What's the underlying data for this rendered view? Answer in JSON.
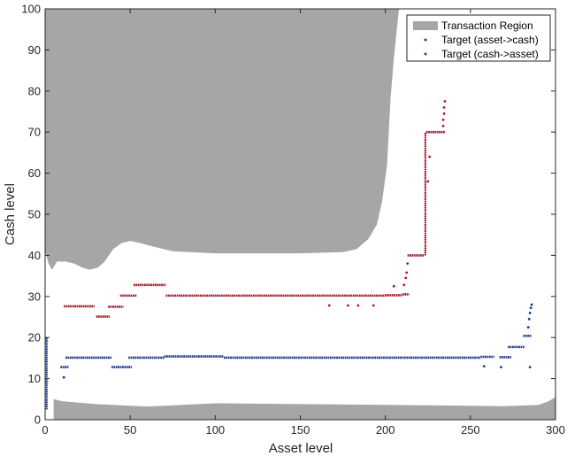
{
  "chart_data": {
    "type": "scatter",
    "title": "",
    "xlabel": "Asset level",
    "ylabel": "Cash level",
    "xlim": [
      0,
      300
    ],
    "ylim": [
      0,
      100
    ],
    "xticks": [
      0,
      50,
      100,
      150,
      200,
      250,
      300
    ],
    "yticks": [
      0,
      10,
      20,
      30,
      40,
      50,
      60,
      70,
      80,
      90,
      100
    ],
    "grid": false,
    "legend_position": "top-right",
    "colors": {
      "region": "#a6a6a6",
      "asset_to_cash": "#1f3b8f",
      "cash_to_asset": "#a31a2e"
    },
    "region": {
      "name": "Transaction Region",
      "upper_boundary": [
        [
          0,
          41
        ],
        [
          2,
          38
        ],
        [
          4,
          36.5
        ],
        [
          7,
          38.5
        ],
        [
          12,
          38.5
        ],
        [
          17,
          38
        ],
        [
          22,
          37
        ],
        [
          26,
          36.5
        ],
        [
          31,
          37
        ],
        [
          35,
          38.5
        ],
        [
          40,
          41.5
        ],
        [
          45,
          43
        ],
        [
          50,
          43.5
        ],
        [
          56,
          43
        ],
        [
          62,
          42.3
        ],
        [
          75,
          41
        ],
        [
          100,
          40.5
        ],
        [
          150,
          40.5
        ],
        [
          175,
          40.8
        ],
        [
          183,
          41.5
        ],
        [
          190,
          44
        ],
        [
          195,
          47.5
        ],
        [
          198,
          53
        ],
        [
          201,
          62
        ],
        [
          203,
          78
        ],
        [
          205,
          88
        ],
        [
          207,
          96
        ],
        [
          208,
          100
        ]
      ],
      "lower_boundary": [
        [
          5,
          5
        ],
        [
          10,
          4.5
        ],
        [
          30,
          3.8
        ],
        [
          60,
          3.2
        ],
        [
          100,
          4.0
        ],
        [
          150,
          3.8
        ],
        [
          200,
          3.6
        ],
        [
          250,
          3.4
        ],
        [
          270,
          3.3
        ],
        [
          290,
          3.6
        ],
        [
          296,
          4.5
        ],
        [
          300,
          5.5
        ]
      ]
    },
    "series": [
      {
        "name": "Target (asset->cash)",
        "segments": [
          {
            "x": [
              0.3,
              1.5
            ],
            "y": 2.5,
            "y2": 20
          },
          {
            "x": [
              9,
              14
            ],
            "y": 12.8
          },
          {
            "x": [
              12,
              39
            ],
            "y": 15.1
          },
          {
            "x": [
              39,
              51
            ],
            "y": 12.8
          },
          {
            "x": [
              49,
              70
            ],
            "y": 15.1
          },
          {
            "x": [
              70,
              105
            ],
            "y": 15.4
          },
          {
            "x": [
              105,
              256
            ],
            "y": 15.1
          },
          {
            "x": [
              256,
              264
            ],
            "y": 15.3
          },
          {
            "x": [
              267,
              274
            ],
            "y": 15.2
          },
          {
            "x": [
              272,
              282
            ],
            "y": 17.7
          },
          {
            "x": [
              281,
              286
            ],
            "y": 20.4
          }
        ],
        "points": [
          [
            11,
            10.3
          ],
          [
            258,
            13
          ],
          [
            268,
            12.8
          ],
          [
            285,
            12.8
          ],
          [
            284,
            22.5
          ],
          [
            284.5,
            24.5
          ],
          [
            285,
            26
          ],
          [
            285.5,
            27.2
          ],
          [
            286,
            28
          ]
        ]
      },
      {
        "name": "Target (cash->asset)",
        "segments": [
          {
            "x": [
              11,
              29
            ],
            "y": 27.6
          },
          {
            "x": [
              30,
              38
            ],
            "y": 25.1
          },
          {
            "x": [
              37,
              46
            ],
            "y": 27.5
          },
          {
            "x": [
              44,
              54
            ],
            "y": 30.2
          },
          {
            "x": [
              52,
              71
            ],
            "y": 32.8
          },
          {
            "x": [
              71,
              200
            ],
            "y": 30.2
          },
          {
            "x": [
              200,
              210
            ],
            "y": 30.3
          },
          {
            "x": [
              210,
              214
            ],
            "y": 30.5
          },
          {
            "x": [
              213,
              223
            ],
            "y": 40
          },
          {
            "x": [
              223,
              224
            ],
            "y": 40,
            "y2": 70
          },
          {
            "x": [
              224,
              235
            ],
            "y": 70
          }
        ],
        "points": [
          [
            167,
            27.8
          ],
          [
            178,
            27.8
          ],
          [
            184,
            27.8
          ],
          [
            193,
            27.8
          ],
          [
            205,
            32.5
          ],
          [
            211,
            32.8
          ],
          [
            212,
            34.5
          ],
          [
            212.5,
            35.8
          ],
          [
            213,
            38
          ],
          [
            225,
            58
          ],
          [
            226,
            64
          ],
          [
            234,
            71.5
          ],
          [
            234,
            73
          ],
          [
            234.5,
            74.5
          ],
          [
            234.5,
            76
          ],
          [
            235,
            77.5
          ]
        ]
      }
    ]
  }
}
